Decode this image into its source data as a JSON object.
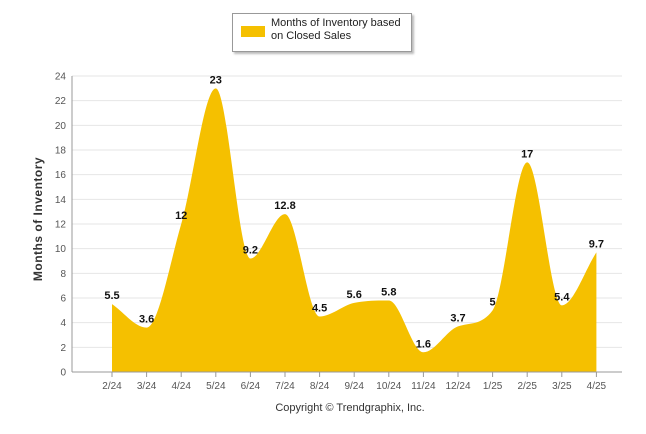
{
  "legend": {
    "label": "Months of Inventory based on Closed Sales"
  },
  "footer": "Copyright © Trendgraphix, Inc.",
  "colors": {
    "fill": "#f5c000",
    "grid": "#e6e6e6",
    "axis": "#999999"
  },
  "chart_data": {
    "type": "area",
    "categories": [
      "2/24",
      "3/24",
      "4/24",
      "5/24",
      "6/24",
      "7/24",
      "8/24",
      "9/24",
      "10/24",
      "11/24",
      "12/24",
      "1/25",
      "2/25",
      "3/25",
      "4/25"
    ],
    "series": [
      {
        "name": "Months of Inventory based on Closed Sales",
        "values": [
          5.5,
          3.6,
          12,
          23,
          9.2,
          12.8,
          4.5,
          5.6,
          5.8,
          1.6,
          3.7,
          5,
          17,
          5.4,
          9.7
        ],
        "labels": [
          "5.5",
          "3.6",
          "12",
          "23",
          "9.2",
          "12.8",
          "4.5",
          "5.6",
          "5.8",
          "1.6",
          "3.7",
          "5",
          "17",
          "5.4",
          "9.7"
        ]
      }
    ],
    "ylabel": "Months of Inventory",
    "xlabel": "",
    "ylim": [
      0,
      24
    ],
    "yticks": [
      0,
      2,
      4,
      6,
      8,
      10,
      12,
      14,
      16,
      18,
      20,
      22,
      24
    ],
    "grid": true,
    "legend_position": "top-center"
  }
}
